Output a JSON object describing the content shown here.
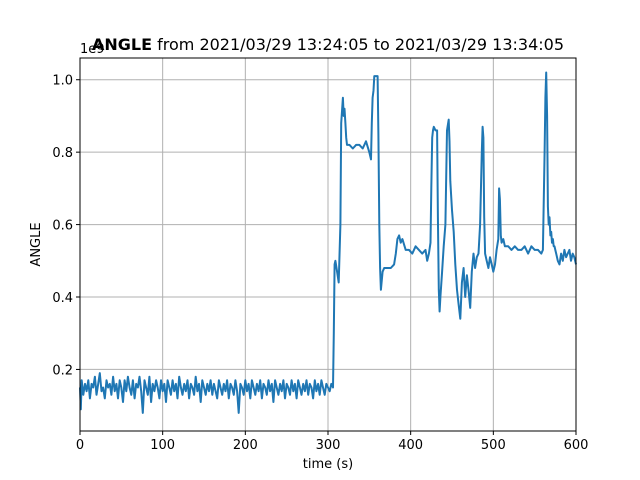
{
  "chart_data": {
    "type": "line",
    "title": {
      "bold": "ANGLE",
      "rest": " from 2021/03/29 13:24:05 to 2021/03/29 13:34:05"
    },
    "xlabel": "time (s)",
    "ylabel": "ANGLE",
    "y_multiplier_label": "1e9",
    "xlim": [
      0,
      600
    ],
    "ylim": [
      0.03,
      1.06
    ],
    "x_ticks": [
      0,
      100,
      200,
      300,
      400,
      500,
      600
    ],
    "x_tick_labels": [
      "0",
      "100",
      "200",
      "300",
      "400",
      "500",
      "600"
    ],
    "y_ticks": [
      0.2,
      0.4,
      0.6,
      0.8,
      1.0
    ],
    "y_tick_labels": [
      "0.2",
      "0.4",
      "0.6",
      "0.8",
      "1.0"
    ],
    "grid": true,
    "colors": {
      "line": "#1f77b4",
      "grid": "#b0b0b0",
      "axes": "#000000"
    },
    "series": [
      {
        "values": [
          [
            0,
            0.15
          ],
          [
            1,
            0.09
          ],
          [
            2,
            0.17
          ],
          [
            4,
            0.13
          ],
          [
            6,
            0.16
          ],
          [
            8,
            0.14
          ],
          [
            10,
            0.17
          ],
          [
            12,
            0.12
          ],
          [
            14,
            0.16
          ],
          [
            16,
            0.15
          ],
          [
            18,
            0.18
          ],
          [
            20,
            0.13
          ],
          [
            22,
            0.16
          ],
          [
            24,
            0.19
          ],
          [
            26,
            0.14
          ],
          [
            28,
            0.15
          ],
          [
            30,
            0.12
          ],
          [
            32,
            0.17
          ],
          [
            34,
            0.15
          ],
          [
            36,
            0.16
          ],
          [
            38,
            0.13
          ],
          [
            40,
            0.18
          ],
          [
            42,
            0.14
          ],
          [
            44,
            0.16
          ],
          [
            46,
            0.12
          ],
          [
            48,
            0.17
          ],
          [
            50,
            0.15
          ],
          [
            52,
            0.11
          ],
          [
            54,
            0.17
          ],
          [
            56,
            0.14
          ],
          [
            58,
            0.18
          ],
          [
            60,
            0.15
          ],
          [
            62,
            0.13
          ],
          [
            64,
            0.17
          ],
          [
            66,
            0.12
          ],
          [
            68,
            0.16
          ],
          [
            70,
            0.15
          ],
          [
            72,
            0.18
          ],
          [
            74,
            0.14
          ],
          [
            76,
            0.08
          ],
          [
            78,
            0.17
          ],
          [
            80,
            0.15
          ],
          [
            82,
            0.13
          ],
          [
            84,
            0.18
          ],
          [
            86,
            0.11
          ],
          [
            88,
            0.16
          ],
          [
            90,
            0.14
          ],
          [
            92,
            0.17
          ],
          [
            94,
            0.15
          ],
          [
            96,
            0.12
          ],
          [
            98,
            0.17
          ],
          [
            100,
            0.14
          ],
          [
            102,
            0.16
          ],
          [
            104,
            0.11
          ],
          [
            106,
            0.17
          ],
          [
            108,
            0.15
          ],
          [
            110,
            0.13
          ],
          [
            112,
            0.17
          ],
          [
            114,
            0.14
          ],
          [
            116,
            0.16
          ],
          [
            118,
            0.12
          ],
          [
            120,
            0.18
          ],
          [
            122,
            0.15
          ],
          [
            124,
            0.13
          ],
          [
            126,
            0.16
          ],
          [
            128,
            0.14
          ],
          [
            130,
            0.17
          ],
          [
            132,
            0.12
          ],
          [
            134,
            0.16
          ],
          [
            136,
            0.15
          ],
          [
            138,
            0.13
          ],
          [
            140,
            0.18
          ],
          [
            142,
            0.14
          ],
          [
            144,
            0.16
          ],
          [
            146,
            0.11
          ],
          [
            148,
            0.17
          ],
          [
            150,
            0.15
          ],
          [
            152,
            0.13
          ],
          [
            154,
            0.16
          ],
          [
            156,
            0.14
          ],
          [
            158,
            0.17
          ],
          [
            160,
            0.13
          ],
          [
            162,
            0.16
          ],
          [
            164,
            0.14
          ],
          [
            166,
            0.12
          ],
          [
            168,
            0.17
          ],
          [
            170,
            0.15
          ],
          [
            172,
            0.13
          ],
          [
            174,
            0.16
          ],
          [
            176,
            0.14
          ],
          [
            178,
            0.17
          ],
          [
            180,
            0.12
          ],
          [
            182,
            0.16
          ],
          [
            184,
            0.15
          ],
          [
            186,
            0.13
          ],
          [
            188,
            0.17
          ],
          [
            190,
            0.14
          ],
          [
            192,
            0.08
          ],
          [
            194,
            0.16
          ],
          [
            196,
            0.15
          ],
          [
            198,
            0.13
          ],
          [
            200,
            0.17
          ],
          [
            202,
            0.14
          ],
          [
            204,
            0.16
          ],
          [
            206,
            0.12
          ],
          [
            208,
            0.17
          ],
          [
            210,
            0.15
          ],
          [
            212,
            0.13
          ],
          [
            214,
            0.16
          ],
          [
            216,
            0.14
          ],
          [
            218,
            0.17
          ],
          [
            220,
            0.12
          ],
          [
            222,
            0.16
          ],
          [
            224,
            0.15
          ],
          [
            226,
            0.13
          ],
          [
            228,
            0.17
          ],
          [
            230,
            0.14
          ],
          [
            232,
            0.16
          ],
          [
            234,
            0.11
          ],
          [
            236,
            0.17
          ],
          [
            238,
            0.15
          ],
          [
            240,
            0.13
          ],
          [
            242,
            0.16
          ],
          [
            244,
            0.14
          ],
          [
            246,
            0.17
          ],
          [
            248,
            0.12
          ],
          [
            250,
            0.16
          ],
          [
            252,
            0.15
          ],
          [
            254,
            0.13
          ],
          [
            256,
            0.17
          ],
          [
            258,
            0.14
          ],
          [
            260,
            0.16
          ],
          [
            262,
            0.12
          ],
          [
            264,
            0.17
          ],
          [
            266,
            0.15
          ],
          [
            268,
            0.13
          ],
          [
            270,
            0.16
          ],
          [
            272,
            0.14
          ],
          [
            274,
            0.17
          ],
          [
            276,
            0.13
          ],
          [
            278,
            0.16
          ],
          [
            280,
            0.15
          ],
          [
            282,
            0.12
          ],
          [
            284,
            0.17
          ],
          [
            286,
            0.14
          ],
          [
            288,
            0.16
          ],
          [
            290,
            0.13
          ],
          [
            292,
            0.17
          ],
          [
            294,
            0.15
          ],
          [
            296,
            0.13
          ],
          [
            298,
            0.16
          ],
          [
            300,
            0.15
          ],
          [
            302,
            0.14
          ],
          [
            304,
            0.16
          ],
          [
            306,
            0.15
          ],
          [
            307,
            0.3
          ],
          [
            308,
            0.49
          ],
          [
            309,
            0.5
          ],
          [
            311,
            0.47
          ],
          [
            313,
            0.44
          ],
          [
            315,
            0.6
          ],
          [
            316,
            0.88
          ],
          [
            318,
            0.95
          ],
          [
            319,
            0.9
          ],
          [
            320,
            0.92
          ],
          [
            321,
            0.88
          ],
          [
            322,
            0.84
          ],
          [
            323,
            0.82
          ],
          [
            326,
            0.82
          ],
          [
            330,
            0.81
          ],
          [
            334,
            0.82
          ],
          [
            338,
            0.82
          ],
          [
            342,
            0.81
          ],
          [
            346,
            0.83
          ],
          [
            350,
            0.8
          ],
          [
            352,
            0.78
          ],
          [
            353,
            0.88
          ],
          [
            354,
            0.95
          ],
          [
            355,
            0.97
          ],
          [
            356,
            1.01
          ],
          [
            358,
            1.01
          ],
          [
            360,
            1.01
          ],
          [
            361,
            0.85
          ],
          [
            362,
            0.6
          ],
          [
            363,
            0.48
          ],
          [
            364,
            0.42
          ],
          [
            366,
            0.47
          ],
          [
            368,
            0.48
          ],
          [
            372,
            0.48
          ],
          [
            376,
            0.48
          ],
          [
            380,
            0.49
          ],
          [
            382,
            0.52
          ],
          [
            384,
            0.56
          ],
          [
            386,
            0.57
          ],
          [
            388,
            0.55
          ],
          [
            390,
            0.56
          ],
          [
            394,
            0.53
          ],
          [
            398,
            0.53
          ],
          [
            402,
            0.52
          ],
          [
            406,
            0.54
          ],
          [
            410,
            0.53
          ],
          [
            414,
            0.52
          ],
          [
            418,
            0.53
          ],
          [
            420,
            0.5
          ],
          [
            422,
            0.52
          ],
          [
            424,
            0.55
          ],
          [
            425,
            0.7
          ],
          [
            426,
            0.84
          ],
          [
            427,
            0.86
          ],
          [
            428,
            0.87
          ],
          [
            430,
            0.86
          ],
          [
            432,
            0.86
          ],
          [
            433,
            0.62
          ],
          [
            434,
            0.42
          ],
          [
            435,
            0.36
          ],
          [
            436,
            0.4
          ],
          [
            438,
            0.47
          ],
          [
            440,
            0.54
          ],
          [
            442,
            0.6
          ],
          [
            444,
            0.86
          ],
          [
            446,
            0.89
          ],
          [
            447,
            0.83
          ],
          [
            448,
            0.72
          ],
          [
            450,
            0.64
          ],
          [
            452,
            0.58
          ],
          [
            454,
            0.49
          ],
          [
            456,
            0.42
          ],
          [
            458,
            0.38
          ],
          [
            460,
            0.34
          ],
          [
            462,
            0.44
          ],
          [
            464,
            0.48
          ],
          [
            466,
            0.4
          ],
          [
            468,
            0.46
          ],
          [
            470,
            0.42
          ],
          [
            472,
            0.37
          ],
          [
            474,
            0.47
          ],
          [
            476,
            0.52
          ],
          [
            478,
            0.48
          ],
          [
            480,
            0.51
          ],
          [
            482,
            0.52
          ],
          [
            484,
            0.6
          ],
          [
            486,
            0.8
          ],
          [
            487,
            0.87
          ],
          [
            488,
            0.84
          ],
          [
            489,
            0.62
          ],
          [
            490,
            0.52
          ],
          [
            492,
            0.5
          ],
          [
            494,
            0.48
          ],
          [
            496,
            0.51
          ],
          [
            498,
            0.49
          ],
          [
            500,
            0.47
          ],
          [
            502,
            0.49
          ],
          [
            504,
            0.53
          ],
          [
            506,
            0.56
          ],
          [
            507,
            0.7
          ],
          [
            508,
            0.67
          ],
          [
            509,
            0.57
          ],
          [
            510,
            0.55
          ],
          [
            512,
            0.56
          ],
          [
            514,
            0.54
          ],
          [
            518,
            0.54
          ],
          [
            522,
            0.53
          ],
          [
            526,
            0.54
          ],
          [
            530,
            0.53
          ],
          [
            534,
            0.53
          ],
          [
            538,
            0.54
          ],
          [
            542,
            0.52
          ],
          [
            546,
            0.54
          ],
          [
            550,
            0.53
          ],
          [
            554,
            0.53
          ],
          [
            558,
            0.52
          ],
          [
            560,
            0.53
          ],
          [
            562,
            0.8
          ],
          [
            563,
            0.95
          ],
          [
            564,
            1.02
          ],
          [
            565,
            0.9
          ],
          [
            566,
            0.65
          ],
          [
            567,
            0.6
          ],
          [
            568,
            0.62
          ],
          [
            569,
            0.57
          ],
          [
            570,
            0.58
          ],
          [
            571,
            0.55
          ],
          [
            572,
            0.56
          ],
          [
            573,
            0.54
          ],
          [
            574,
            0.54
          ],
          [
            575,
            0.53
          ],
          [
            576,
            0.52
          ],
          [
            578,
            0.5
          ],
          [
            580,
            0.49
          ],
          [
            582,
            0.52
          ],
          [
            584,
            0.5
          ],
          [
            586,
            0.53
          ],
          [
            588,
            0.51
          ],
          [
            590,
            0.52
          ],
          [
            592,
            0.53
          ],
          [
            594,
            0.5
          ],
          [
            596,
            0.52
          ],
          [
            598,
            0.51
          ],
          [
            600,
            0.49
          ]
        ]
      }
    ]
  }
}
